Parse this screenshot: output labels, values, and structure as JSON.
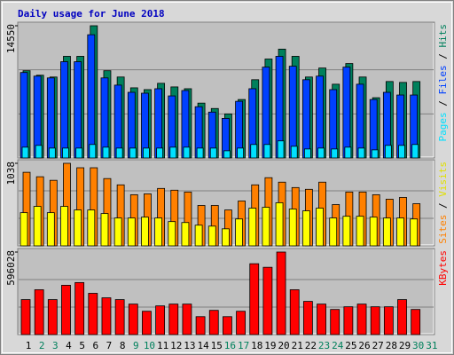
{
  "title": "Daily usage for June 2018",
  "legend_separator": " / ",
  "chart_data": [
    {
      "type": "bar",
      "ylim": [
        0,
        14550
      ],
      "yticks": [
        14550
      ],
      "ygrid": [
        4850,
        9700
      ],
      "series": [
        {
          "name": "Pages",
          "color": "#00E0FF",
          "values": [
            1188,
            1386,
            1089,
            1089,
            1089,
            1485,
            1188,
            1089,
            1089,
            1089,
            1089,
            1188,
            1188,
            1089,
            1089,
            792,
            1089,
            1485,
            1485,
            1881,
            1287,
            990,
            1089,
            990,
            1188,
            1089,
            891,
            1386,
            1386,
            1485,
            0
          ]
        },
        {
          "name": "Files",
          "color": "#0040FF",
          "values": [
            9403,
            9007,
            8809,
            10591,
            10591,
            13560,
            8809,
            8017,
            7226,
            7127,
            7621,
            6830,
            7424,
            5642,
            5048,
            4355,
            6236,
            7621,
            9997,
            11185,
            10096,
            8611,
            9007,
            7522,
            9997,
            8116,
            6434,
            7226,
            6929,
            6929,
            0
          ]
        },
        {
          "name": "Hits",
          "color": "#00805C",
          "values": [
            9601,
            9106,
            8908,
            11185,
            11185,
            14550,
            9601,
            8908,
            7720,
            7522,
            8215,
            7819,
            7621,
            6038,
            5444,
            4850,
            6434,
            8611,
            10888,
            11977,
            11185,
            8908,
            9898,
            8116,
            10393,
            8908,
            6632,
            8413,
            8314,
            8413,
            0
          ]
        }
      ]
    },
    {
      "type": "bar",
      "ylim": [
        0,
        1038
      ],
      "yticks": [
        1038
      ],
      "ygrid": [
        346,
        692
      ],
      "series": [
        {
          "name": "Sites",
          "color": "#FF8000",
          "values": [
            925,
            869,
            824,
            1038,
            982,
            982,
            846,
            767,
            643,
            654,
            722,
            700,
            677,
            508,
            508,
            451,
            564,
            767,
            857,
            801,
            733,
            711,
            801,
            519,
            677,
            677,
            643,
            587,
            609,
            530,
            0
          ]
        },
        {
          "name": "Visits",
          "color": "#FFFF00",
          "values": [
            417,
            496,
            417,
            496,
            451,
            451,
            406,
            350,
            350,
            361,
            350,
            305,
            293,
            260,
            248,
            214,
            338,
            474,
            485,
            542,
            463,
            440,
            474,
            350,
            372,
            372,
            361,
            350,
            350,
            338,
            0
          ]
        }
      ]
    },
    {
      "type": "bar",
      "ylim": [
        0,
        596028
      ],
      "yticks": [
        596028
      ],
      "ygrid": [
        198676,
        397352
      ],
      "series": [
        {
          "name": "KBytes",
          "color": "#FF0000",
          "values": [
            252664,
            323928,
            252664,
            356321,
            375756,
            298014,
            265621,
            252664,
            220271,
            168443,
            207314,
            220271,
            220271,
            129571,
            174921,
            129571,
            168443,
            511806,
            485893,
            596028,
            323928,
            239707,
            220271,
            181400,
            200836,
            220271,
            200836,
            200836,
            252664,
            181400,
            0
          ]
        }
      ],
      "categories": [
        "1",
        "2",
        "3",
        "4",
        "5",
        "6",
        "7",
        "8",
        "9",
        "10",
        "11",
        "12",
        "13",
        "14",
        "15",
        "16",
        "17",
        "18",
        "19",
        "20",
        "21",
        "22",
        "23",
        "24",
        "25",
        "26",
        "27",
        "28",
        "29",
        "30",
        "31"
      ],
      "category_colors": [
        "#000000",
        "#00805C",
        "#00805C",
        "#000000",
        "#000000",
        "#000000",
        "#000000",
        "#000000",
        "#00805C",
        "#00805C",
        "#000000",
        "#000000",
        "#000000",
        "#000000",
        "#000000",
        "#00805C",
        "#00805C",
        "#000000",
        "#000000",
        "#000000",
        "#000000",
        "#000000",
        "#00805C",
        "#00805C",
        "#000000",
        "#000000",
        "#000000",
        "#000000",
        "#000000",
        "#00805C",
        "#00805C"
      ]
    }
  ]
}
